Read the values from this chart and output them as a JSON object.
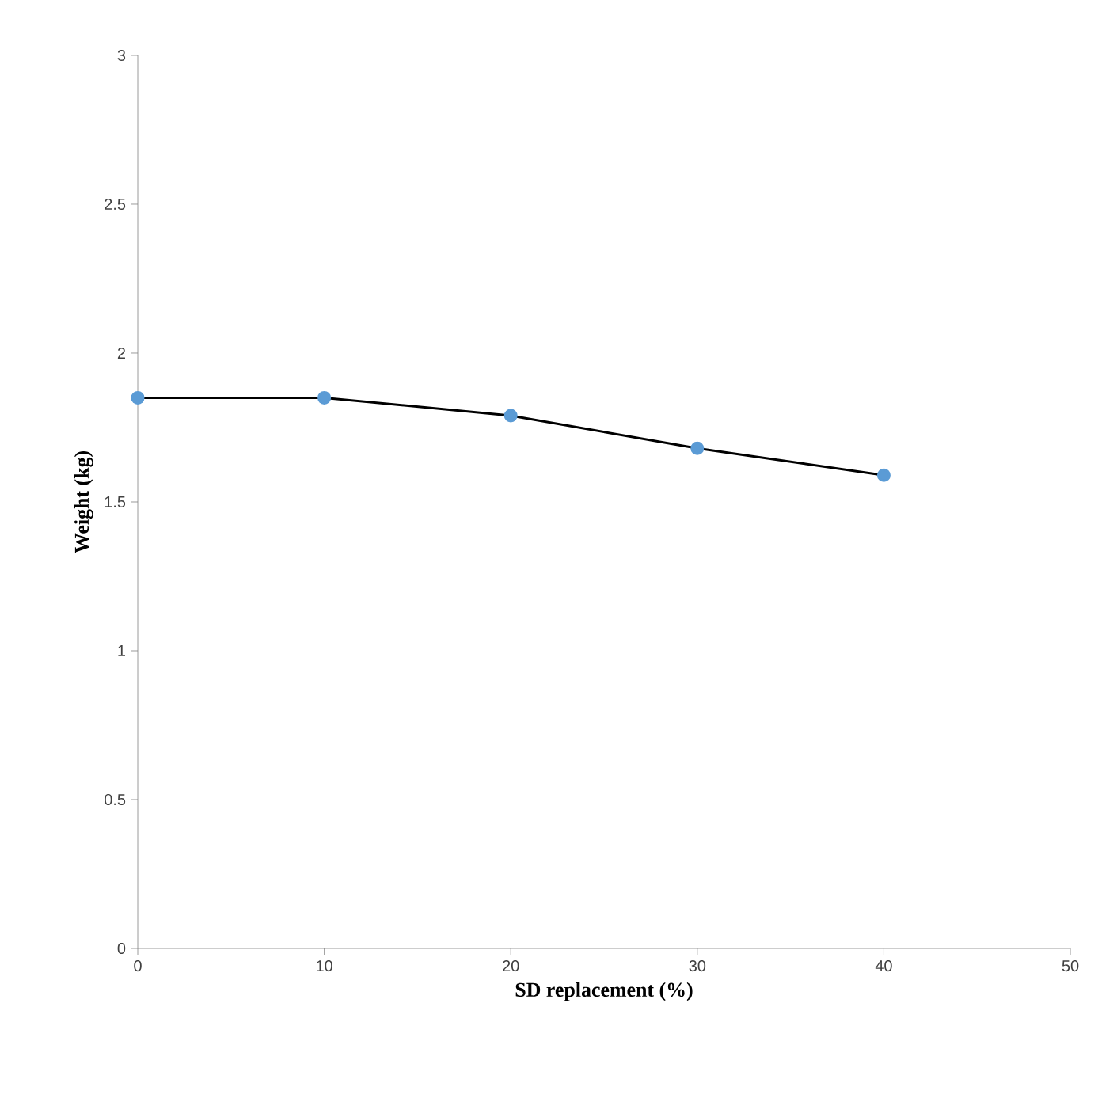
{
  "chart_data": {
    "type": "line",
    "xlabel": "SD replacement (%)",
    "ylabel": "Weight (kg)",
    "x": [
      0,
      10,
      20,
      30,
      40
    ],
    "series": [
      {
        "color": "#5b9bd5",
        "values": [
          1.85,
          1.85,
          1.79,
          1.68,
          1.59
        ]
      }
    ],
    "xlim": [
      0,
      50
    ],
    "xticks": [
      0,
      10,
      20,
      30,
      40,
      50
    ],
    "ylim": [
      0,
      3
    ],
    "yticks": [
      0,
      0.5,
      1,
      1.5,
      2,
      2.5,
      3
    ],
    "marker": "circle",
    "line_style": "solid",
    "grid": false,
    "legend": false
  }
}
